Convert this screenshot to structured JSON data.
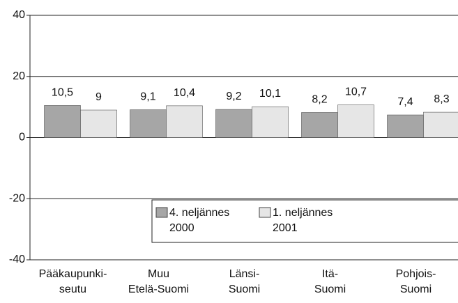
{
  "chart_data": {
    "type": "bar",
    "categories": [
      "Pääkaupunki-\nseutu",
      "Muu\nEtelä-Suomi",
      "Länsi-\nSuomi",
      "Itä-\nSuomi",
      "Pohjois-\nSuomi"
    ],
    "series": [
      {
        "name": "4. neljännes\n2000",
        "color": "#a6a6a6",
        "values": [
          10.5,
          9.1,
          9.2,
          8.2,
          7.4
        ],
        "value_labels": [
          "10,5",
          "9,1",
          "9,2",
          "8,2",
          "7,4"
        ]
      },
      {
        "name": "1. neljännes\n2001",
        "color": "#e6e6e6",
        "values": [
          9,
          10.4,
          10.1,
          10.7,
          8.3
        ],
        "value_labels": [
          "9",
          "10,4",
          "10,1",
          "10,7",
          "8,3"
        ]
      }
    ],
    "ylim": [
      -40,
      40
    ],
    "yticks": [
      -40,
      -20,
      0,
      20,
      40
    ],
    "grid": true
  }
}
